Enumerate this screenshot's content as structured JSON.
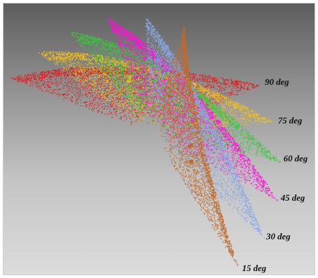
{
  "figure": {
    "background_gradient": [
      "#5d5d5d",
      "#8f8f8f",
      "#c4c4c4",
      "#dcdcdc"
    ],
    "fans": [
      {
        "label": "90 deg",
        "color": "#e02020"
      },
      {
        "label": "75 deg",
        "color": "#f0c020"
      },
      {
        "label": "60 deg",
        "color": "#38c838"
      },
      {
        "label": "45 deg",
        "color": "#ff10d8"
      },
      {
        "label": "30 deg",
        "color": "#8aa8e6"
      },
      {
        "label": "15 deg",
        "color": "#c06a2a"
      }
    ]
  }
}
